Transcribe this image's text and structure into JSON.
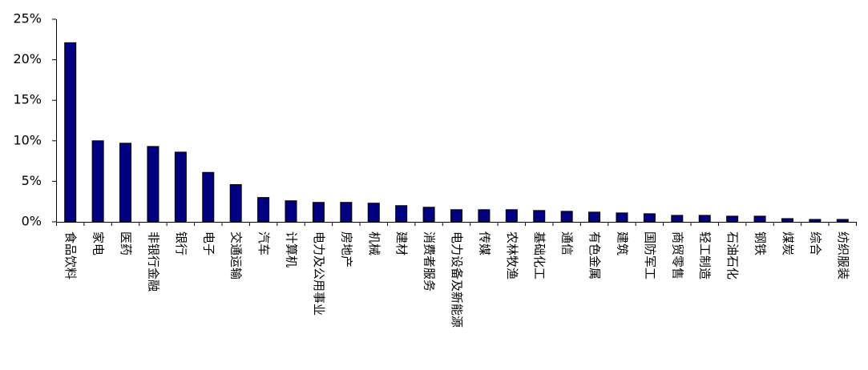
{
  "chart_data": {
    "type": "bar",
    "categories": [
      "食品饮料",
      "家电",
      "医药",
      "非银行金融",
      "银行",
      "电子",
      "交通运输",
      "汽车",
      "计算机",
      "电力及公用事业",
      "房地产",
      "机械",
      "建材",
      "消费者服务",
      "电力设备及新能源",
      "传媒",
      "农林牧渔",
      "基础化工",
      "通信",
      "有色金属",
      "建筑",
      "国防军工",
      "商贸零售",
      "轻工制造",
      "石油石化",
      "钢铁",
      "煤炭",
      "综合",
      "纺织服装"
    ],
    "values": [
      22.1,
      10.0,
      9.7,
      9.3,
      8.6,
      6.1,
      4.6,
      3.0,
      2.6,
      2.4,
      2.4,
      2.3,
      2.0,
      1.8,
      1.5,
      1.5,
      1.5,
      1.4,
      1.3,
      1.2,
      1.1,
      1.0,
      0.8,
      0.8,
      0.7,
      0.7,
      0.4,
      0.3,
      0.3
    ],
    "color": "#000080",
    "ylim": [
      0,
      25
    ],
    "yticks": [
      {
        "value": 0,
        "label": "0%"
      },
      {
        "value": 5,
        "label": "5%"
      },
      {
        "value": 10,
        "label": "10%"
      },
      {
        "value": 15,
        "label": "15%"
      },
      {
        "value": 20,
        "label": "20%"
      },
      {
        "value": 25,
        "label": "25%"
      }
    ],
    "grid": false
  }
}
